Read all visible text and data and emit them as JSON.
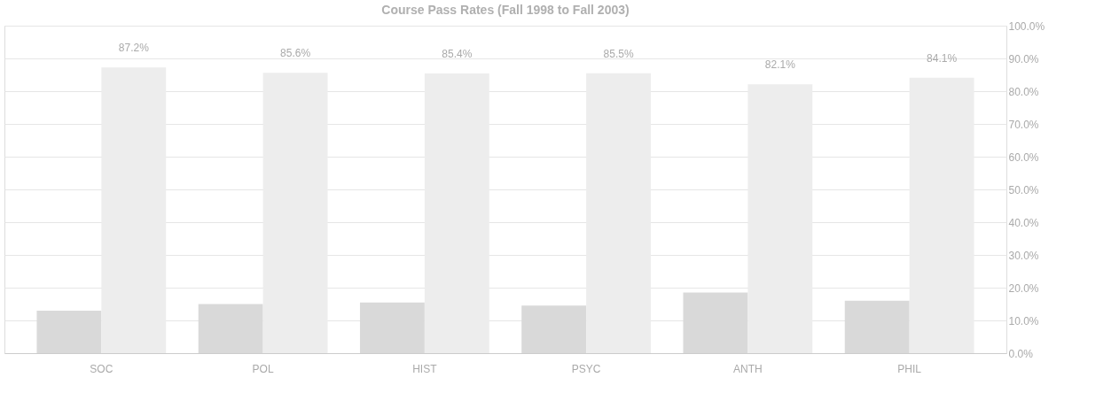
{
  "chart_data": {
    "type": "bar",
    "title": "Course Pass Rates (Fall 1998 to Fall 2003)",
    "categories": [
      "SOC",
      "POL",
      "HIST",
      "PSYC",
      "ANTH",
      "PHIL"
    ],
    "series": [
      {
        "color": "#d9d9d9",
        "values": [
          13,
          15,
          15.5,
          14.5,
          18.5,
          16
        ]
      },
      {
        "color": "#ededed",
        "values": [
          87.2,
          85.6,
          85.4,
          85.5,
          82.1,
          84.1
        ],
        "value_labels": [
          "87.2%",
          "85.6%",
          "85.4%",
          "85.5%",
          "82.1%",
          "84.1%"
        ]
      }
    ],
    "ylim": [
      0,
      100
    ],
    "yticks": [
      {
        "value": 0,
        "label": "0.0%"
      },
      {
        "value": 10,
        "label": "10.0%"
      },
      {
        "value": 20,
        "label": "20.0%"
      },
      {
        "value": 30,
        "label": "30.0%"
      },
      {
        "value": 40,
        "label": "40.0%"
      },
      {
        "value": 50,
        "label": "50.0%"
      },
      {
        "value": 60,
        "label": "60.0%"
      },
      {
        "value": 70,
        "label": "70.0%"
      },
      {
        "value": 80,
        "label": "80.0%"
      },
      {
        "value": 90,
        "label": "90.0%"
      },
      {
        "value": 100,
        "label": "100.0%"
      }
    ],
    "grid": "y"
  }
}
